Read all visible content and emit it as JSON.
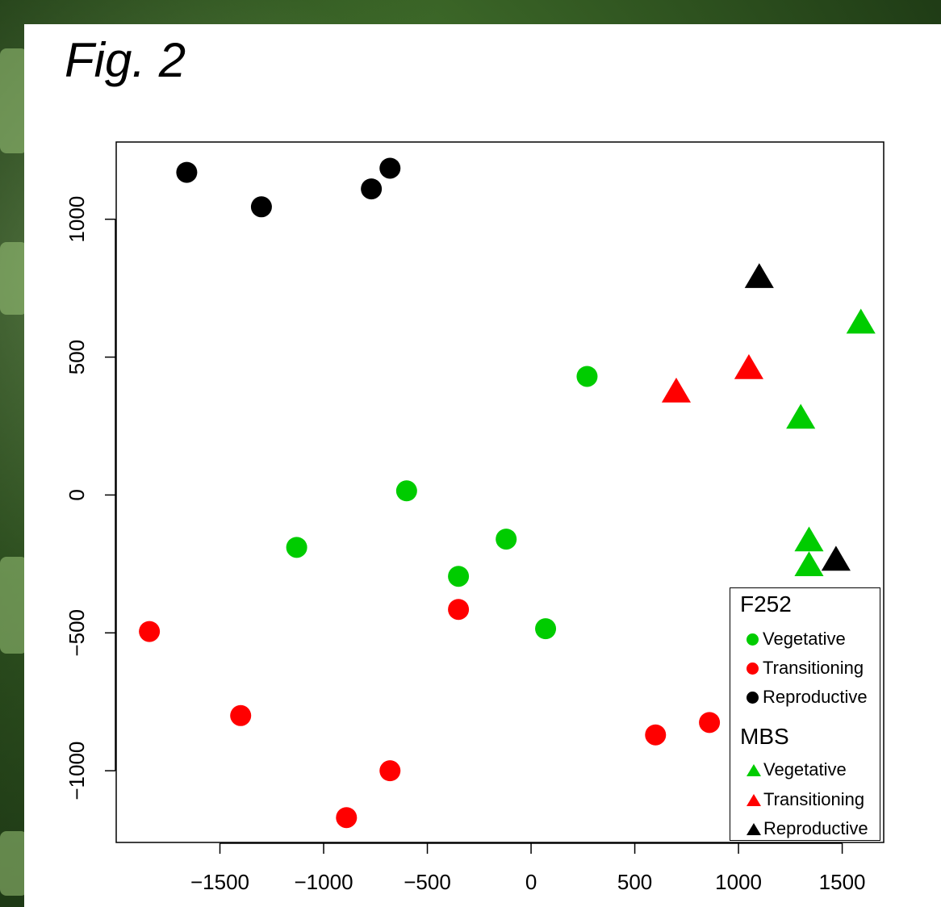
{
  "figure_title": "Fig. 2",
  "colors": {
    "vegetative": "#00cc00",
    "transitioning": "#ff0000",
    "reproductive": "#000000"
  },
  "legend": {
    "groups": [
      {
        "label": "F252",
        "marker": "circle",
        "items": [
          "Vegetative",
          "Transitioning",
          "Reproductive"
        ]
      },
      {
        "label": "MBS",
        "marker": "triangle",
        "items": [
          "Vegetative",
          "Transitioning",
          "Reproductive"
        ]
      }
    ]
  },
  "chart_data": {
    "type": "scatter",
    "title": "",
    "xlabel": "",
    "ylabel": "",
    "xlim": [
      -2000,
      1700
    ],
    "ylim": [
      -1260,
      1280
    ],
    "xticks": [
      -1500,
      -1000,
      -500,
      0,
      500,
      1000,
      1500
    ],
    "yticks": [
      -1000,
      -500,
      0,
      500,
      1000
    ],
    "xtick_labels": [
      "−1500",
      "−1000",
      "−500",
      "0",
      "500",
      "1000",
      "1500"
    ],
    "ytick_labels": [
      "−1000",
      "−500",
      "0",
      "500",
      "1000"
    ],
    "legend_position": "bottom-right",
    "grid": false,
    "series": [
      {
        "group": "F252",
        "name": "Vegetative",
        "marker": "circle",
        "color_key": "vegetative",
        "points": [
          [
            270,
            430
          ],
          [
            -600,
            15
          ],
          [
            -1130,
            -190
          ],
          [
            -120,
            -160
          ],
          [
            -350,
            -295
          ],
          [
            70,
            -485
          ]
        ]
      },
      {
        "group": "F252",
        "name": "Transitioning",
        "marker": "circle",
        "color_key": "transitioning",
        "points": [
          [
            -350,
            -415
          ],
          [
            -1840,
            -495
          ],
          [
            -1400,
            -800
          ],
          [
            -680,
            -1000
          ],
          [
            -890,
            -1170
          ],
          [
            600,
            -870
          ],
          [
            860,
            -825
          ]
        ]
      },
      {
        "group": "F252",
        "name": "Reproductive",
        "marker": "circle",
        "color_key": "reproductive",
        "points": [
          [
            -1660,
            1170
          ],
          [
            -1300,
            1045
          ],
          [
            -770,
            1110
          ],
          [
            -680,
            1185
          ]
        ]
      },
      {
        "group": "MBS",
        "name": "Vegetative",
        "marker": "triangle",
        "color_key": "vegetative",
        "points": [
          [
            1590,
            620
          ],
          [
            1300,
            275
          ],
          [
            1340,
            -170
          ],
          [
            1340,
            -260
          ]
        ]
      },
      {
        "group": "MBS",
        "name": "Transitioning",
        "marker": "triangle",
        "color_key": "transitioning",
        "points": [
          [
            700,
            370
          ],
          [
            1050,
            455
          ]
        ]
      },
      {
        "group": "MBS",
        "name": "Reproductive",
        "marker": "triangle",
        "color_key": "reproductive",
        "points": [
          [
            1100,
            785
          ],
          [
            1470,
            -240
          ]
        ]
      }
    ]
  }
}
